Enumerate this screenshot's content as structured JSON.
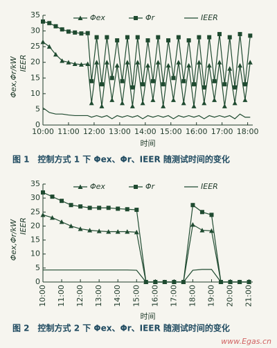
{
  "chart_data": [
    {
      "type": "line",
      "title": "图 1　控制方式 1 下 Φex、Φr、IEER 随测试时间的变化",
      "xlabel": "时间",
      "ylabel": [
        "Φex,Φr/kW",
        "IEER"
      ],
      "x": [
        10,
        10.25,
        10.5,
        10.75,
        11,
        11.25,
        11.5,
        11.75,
        11.9,
        12.1,
        12.3,
        12.5,
        12.7,
        12.9,
        13.1,
        13.3,
        13.5,
        13.7,
        13.9,
        14.1,
        14.3,
        14.5,
        14.7,
        14.9,
        15.1,
        15.3,
        15.5,
        15.7,
        15.9,
        16.1,
        16.3,
        16.5,
        16.7,
        16.9,
        17.1,
        17.3,
        17.5,
        17.7,
        17.9,
        18.1
      ],
      "series": [
        {
          "name": "Φex",
          "color": "#1f4a30",
          "marker": "triangle",
          "values": [
            26.5,
            25,
            22.5,
            20.5,
            20,
            19.5,
            19.3,
            19.5,
            7,
            20,
            6,
            20,
            8,
            19,
            7,
            20,
            6,
            20,
            7,
            19,
            8,
            20,
            6,
            19,
            8,
            20,
            7,
            19,
            6,
            20,
            7,
            19,
            8,
            20,
            6,
            18,
            7,
            19,
            8,
            20
          ]
        },
        {
          "name": "Φr",
          "color": "#1f4a30",
          "marker": "square",
          "values": [
            33,
            32.5,
            31.5,
            30.5,
            29.8,
            29.5,
            29.2,
            29.3,
            14,
            28,
            13,
            28,
            15,
            27,
            14,
            28,
            12,
            28,
            13,
            27,
            14,
            28,
            13,
            27,
            15,
            28,
            14,
            27,
            13,
            28,
            12,
            28,
            14,
            29,
            13,
            28,
            12,
            29,
            13,
            28.5
          ]
        },
        {
          "name": "IEER",
          "color": "#1f4a30",
          "marker": "none",
          "values": [
            5.5,
            4,
            3.5,
            3.5,
            3.2,
            3,
            3,
            3,
            2.5,
            3,
            2.5,
            3,
            2,
            3,
            2.5,
            3,
            2.5,
            3,
            2,
            3,
            2.5,
            3,
            2.5,
            3,
            2,
            3,
            2.5,
            3,
            2.5,
            3,
            2,
            3,
            2.5,
            3,
            2.5,
            3,
            2,
            3.5,
            2.5,
            2.5
          ]
        }
      ],
      "xlim": [
        10,
        18.2
      ],
      "ylim": [
        0,
        35
      ],
      "xticks": [
        {
          "value": 10,
          "label": "10:00"
        },
        {
          "value": 11,
          "label": "11:00"
        },
        {
          "value": 12,
          "label": "12:00"
        },
        {
          "value": 13,
          "label": "13:00"
        },
        {
          "value": 14,
          "label": "14:00"
        },
        {
          "value": 15,
          "label": "15:00"
        },
        {
          "value": 16,
          "label": "16:00"
        },
        {
          "value": 17,
          "label": "17:00"
        },
        {
          "value": 18,
          "label": "18:00"
        }
      ],
      "yticks": [
        0,
        5,
        10,
        15,
        20,
        25,
        30,
        35
      ]
    },
    {
      "type": "line",
      "title": "图 2　控制方式 2 下 Φex、Φr、IEER 随测试时间的变化",
      "xlabel": "时间",
      "ylabel": [
        "Φex,Φr/kW",
        "IEER"
      ],
      "x": [
        10,
        10.5,
        11,
        11.5,
        12,
        12.5,
        13,
        13.5,
        14,
        14.5,
        15,
        15.5,
        16,
        16.5,
        17,
        17.5,
        18,
        18.5,
        19,
        19.5,
        20,
        20.5,
        21
      ],
      "series": [
        {
          "name": "Φex",
          "color": "#1f4a30",
          "marker": "triangle",
          "values": [
            24,
            23,
            21.5,
            20,
            19,
            18.5,
            18.2,
            18,
            18,
            18,
            17.8,
            0,
            0,
            0,
            0,
            0,
            20.5,
            18.5,
            18.3,
            0,
            0,
            0,
            0
          ]
        },
        {
          "name": "Φr",
          "color": "#1f4a30",
          "marker": "square",
          "values": [
            32,
            30.5,
            29,
            27.5,
            27,
            26.5,
            26.5,
            26.5,
            26.2,
            26,
            25.8,
            0,
            0,
            0,
            0,
            0,
            27.5,
            25,
            24,
            0,
            0,
            0,
            0
          ]
        },
        {
          "name": "IEER",
          "color": "#1f4a30",
          "marker": "none",
          "values": [
            4.3,
            4.3,
            4.3,
            4.3,
            4.3,
            4.3,
            4.3,
            4.3,
            4.3,
            4.3,
            4.2,
            0,
            0,
            0,
            0,
            0,
            4.2,
            4.5,
            4.5,
            0,
            0,
            0,
            0
          ]
        }
      ],
      "xlim": [
        10,
        21.2
      ],
      "ylim": [
        0,
        35
      ],
      "xticks": [
        {
          "value": 10,
          "label": "10:00"
        },
        {
          "value": 11,
          "label": "11:00"
        },
        {
          "value": 12,
          "label": "12:00"
        },
        {
          "value": 13,
          "label": "13:00"
        },
        {
          "value": 14,
          "label": "14:00"
        },
        {
          "value": 15,
          "label": "15:00"
        },
        {
          "value": 16,
          "label": "16:00"
        },
        {
          "value": 17,
          "label": "17:00"
        },
        {
          "value": 18,
          "label": "18:00"
        },
        {
          "value": 19,
          "label": "19:00"
        },
        {
          "value": 20,
          "label": "20:00"
        },
        {
          "value": 21,
          "label": "21:00"
        }
      ],
      "yticks": [
        0,
        5,
        10,
        15,
        20,
        25,
        30,
        35
      ]
    }
  ],
  "watermark": "www.Egas.cn"
}
